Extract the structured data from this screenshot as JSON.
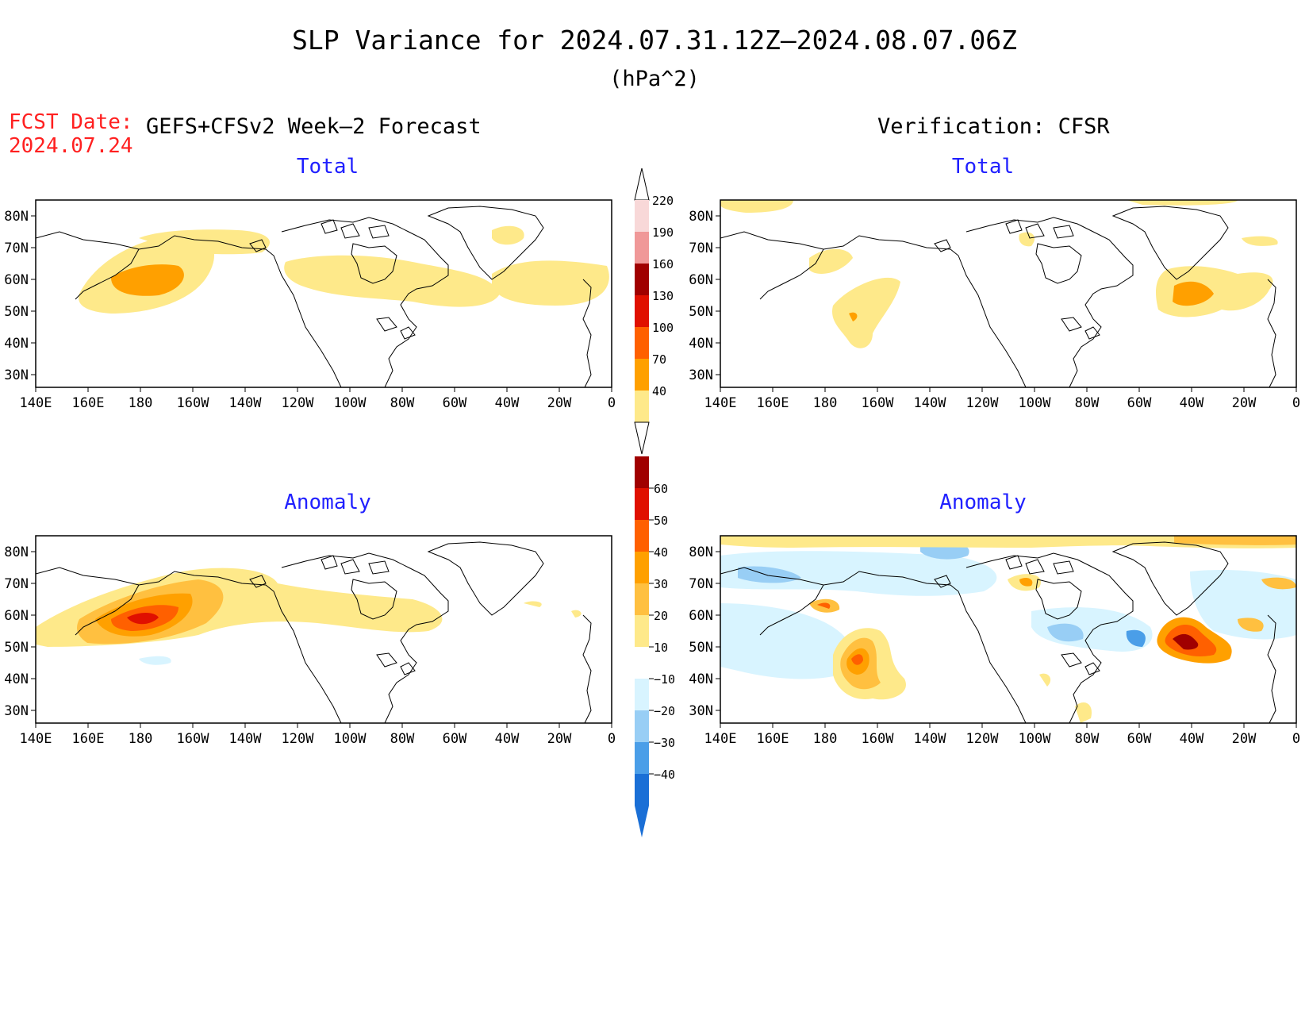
{
  "title": "SLP Variance for 2024.07.31.12Z–2024.08.07.06Z",
  "units": "(hPa^2)",
  "fcst_label": "FCST Date:",
  "fcst_date": "2024.07.24",
  "left_header": "GEFS+CFSv2 Week–2 Forecast",
  "right_header": "Verification: CFSR",
  "panels": {
    "total_left_title": "Total",
    "total_right_title": "Total",
    "anom_left_title": "Anomaly",
    "anom_right_title": "Anomaly"
  },
  "lat_labels": [
    "80N",
    "70N",
    "60N",
    "50N",
    "40N",
    "30N"
  ],
  "lat_values": [
    80,
    70,
    60,
    50,
    40,
    30
  ],
  "lon_labels": [
    "140E",
    "160E",
    "180",
    "160W",
    "140W",
    "120W",
    "100W",
    "80W",
    "60W",
    "40W",
    "20W",
    "0"
  ],
  "total_colorbar": {
    "levels": [
      "220",
      "190",
      "160",
      "130",
      "100",
      "70",
      "40"
    ],
    "colors": [
      "#f8d8d8",
      "#f09898",
      "#a00000",
      "#e01000",
      "#ff6000",
      "#ffa000",
      "#fee98a"
    ]
  },
  "anom_colorbar": {
    "levels": [
      "60",
      "50",
      "40",
      "30",
      "20",
      "10",
      "−10",
      "−20",
      "−30",
      "−40"
    ],
    "colors": [
      "#a00000",
      "#e01000",
      "#ff6000",
      "#ffa000",
      "#ffc040",
      "#fee98a",
      "#ffffff",
      "#d8f4ff",
      "#98cef5",
      "#4a9ee8",
      "#1a6fd6"
    ]
  },
  "colors": {
    "title": "#000000",
    "fcst": "#ff2020",
    "panel_title": "#2020ff"
  }
}
